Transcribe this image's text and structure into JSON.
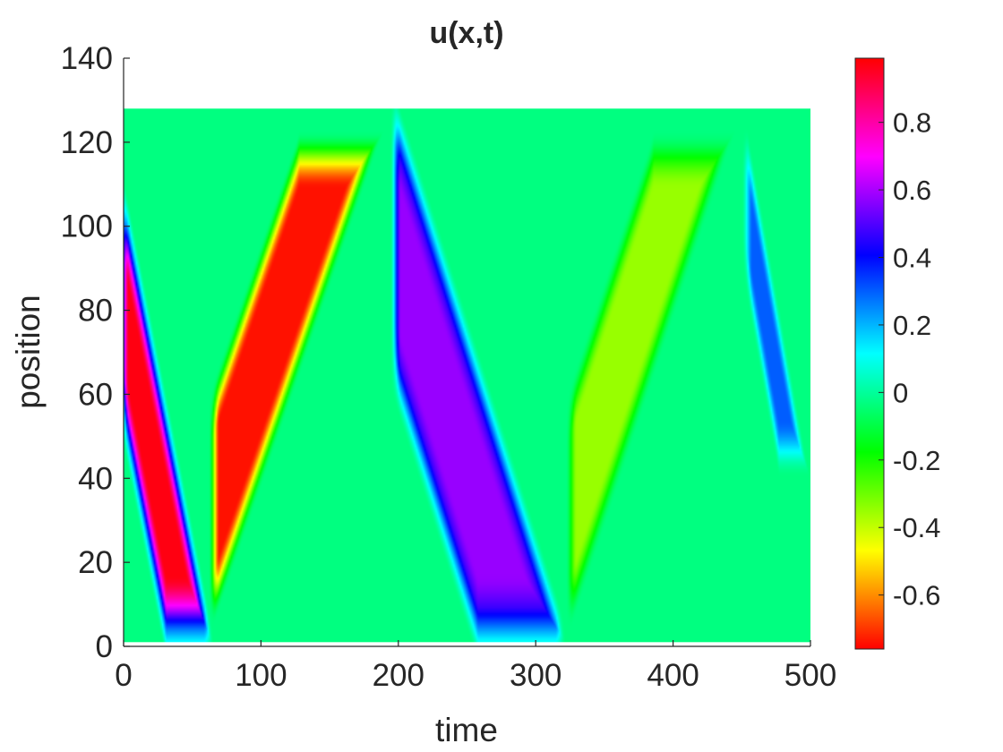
{
  "chart_data": {
    "type": "heatmap",
    "title": "u(x,t)",
    "xlabel": "time",
    "ylabel": "position",
    "xlim": [
      0,
      500
    ],
    "ylim": [
      0,
      140
    ],
    "x_ticks": [
      "0",
      "100",
      "200",
      "300",
      "400",
      "500"
    ],
    "y_ticks": [
      "0",
      "20",
      "40",
      "60",
      "80",
      "100",
      "120",
      "140"
    ],
    "data_extent": {
      "time": [
        0,
        500
      ],
      "position": [
        1,
        128
      ]
    },
    "colormap": "hsv (red → yellow → green → cyan → blue → magenta → red)",
    "colorbar": {
      "range": [
        -0.76,
        0.99
      ],
      "ticks": [
        "0.8",
        "0.6",
        "0.4",
        "0.2",
        "0",
        "-0.2",
        "-0.4",
        "-0.6"
      ],
      "location": "right"
    },
    "background_value": -0.03,
    "bands": [
      {
        "value": 0.97,
        "t_start": 0,
        "t_end": 62,
        "pos_lo": 3,
        "pos_hi": 105,
        "direction": "down",
        "edge_value": 0.45
      },
      {
        "value": -0.74,
        "t_start": 66,
        "t_end": 190,
        "pos_lo": 5,
        "pos_hi": 123,
        "direction": "up"
      },
      {
        "value": 0.58,
        "t_start": 198,
        "t_end": 318,
        "pos_lo": 3,
        "pos_hi": 125,
        "direction": "down",
        "edge_value": 0.4
      },
      {
        "value": -0.35,
        "t_start": 326,
        "t_end": 446,
        "pos_lo": 4,
        "pos_hi": 123,
        "direction": "up"
      },
      {
        "value": 0.3,
        "t_start": 454,
        "t_end": 500,
        "pos_lo": 40,
        "pos_hi": 124,
        "direction": "down"
      }
    ],
    "grid": false
  }
}
